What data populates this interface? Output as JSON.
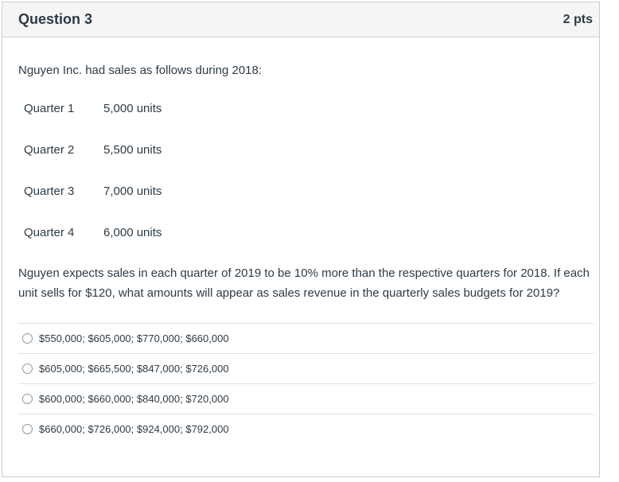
{
  "question": {
    "title": "Question 3",
    "points": "2 pts",
    "intro": "Nguyen Inc. had sales as follows during 2018:",
    "quarters": [
      {
        "label": "Quarter 1",
        "value": "5,000 units"
      },
      {
        "label": "Quarter 2",
        "value": "5,500 units"
      },
      {
        "label": "Quarter 3",
        "value": "7,000 units"
      },
      {
        "label": "Quarter 4",
        "value": "6,000 units"
      }
    ],
    "prompt": "Nguyen expects sales in each quarter of 2019 to be 10% more than the respective quarters for 2018. If each unit sells for $120, what amounts will appear as sales revenue in the quarterly sales budgets for 2019?",
    "answers": [
      "$550,000; $605,000; $770,000; $660,000",
      "$605,000; $665,500; $847,000; $726,000",
      "$600,000; $660,000; $840,000; $720,000",
      "$660,000; $726,000; $924,000; $792,000"
    ]
  }
}
